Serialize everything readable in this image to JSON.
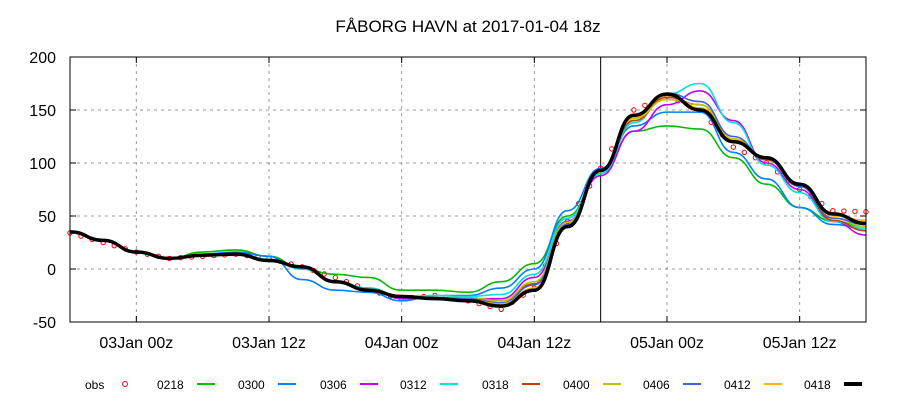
{
  "chart_data": {
    "type": "line",
    "title": "FÅBORG HAVN at 2017-01-04 18z",
    "xlabel": "",
    "ylabel": "",
    "x_unit": "hours since 02Jan 18z",
    "xlim": [
      0,
      72
    ],
    "ylim": [
      -50,
      200
    ],
    "yticks": [
      -50,
      0,
      50,
      100,
      150,
      200
    ],
    "xticks": [
      {
        "h": 6,
        "label": "03Jan 00z"
      },
      {
        "h": 18,
        "label": "03Jan 12z"
      },
      {
        "h": 30,
        "label": "04Jan 00z"
      },
      {
        "h": 42,
        "label": "04Jan 12z"
      },
      {
        "h": 54,
        "label": "05Jan 00z"
      },
      {
        "h": 66,
        "label": "05Jan 12z"
      }
    ],
    "analysis_time_h": 48,
    "grid": true,
    "legend_placement": "bottom",
    "x": [
      0,
      3,
      6,
      9,
      12,
      15,
      18,
      21,
      24,
      27,
      30,
      33,
      36,
      39,
      42,
      45,
      48,
      51,
      54,
      57,
      60,
      63,
      66,
      69,
      72
    ],
    "series": [
      {
        "name": "obs",
        "color": "#ff0000",
        "style": "points",
        "values": [
          34,
          25,
          16,
          10,
          12,
          14,
          10,
          2,
          -8,
          -20,
          -28,
          -25,
          -30,
          -38,
          -18,
          45,
          95,
          150,
          163,
          150,
          115,
          100,
          75,
          55,
          54
        ]
      },
      {
        "name": "0218",
        "color": "#00bb00",
        "style": "line",
        "values": [
          35,
          27,
          16,
          10,
          16,
          18,
          12,
          0,
          -5,
          -8,
          -20,
          -20,
          -22,
          -12,
          5,
          50,
          90,
          130,
          135,
          132,
          105,
          80,
          58,
          45,
          40
        ]
      },
      {
        "name": "0300",
        "color": "#0080ff",
        "style": "line",
        "values": [
          35,
          27,
          16,
          10,
          14,
          16,
          12,
          -10,
          -20,
          -22,
          -30,
          -25,
          -25,
          -18,
          0,
          55,
          95,
          135,
          148,
          148,
          110,
          85,
          58,
          42,
          38
        ]
      },
      {
        "name": "0306",
        "color": "#c000ff",
        "style": "line",
        "values": [
          35,
          27,
          16,
          10,
          13,
          15,
          9,
          0,
          -12,
          -18,
          -28,
          -27,
          -28,
          -28,
          -8,
          45,
          88,
          130,
          155,
          168,
          140,
          100,
          75,
          45,
          32
        ]
      },
      {
        "name": "0312",
        "color": "#00e0e0",
        "style": "line",
        "values": [
          35,
          27,
          16,
          10,
          13,
          15,
          9,
          0,
          -12,
          -18,
          -26,
          -25,
          -26,
          -24,
          -5,
          48,
          90,
          138,
          165,
          175,
          138,
          98,
          72,
          45,
          38
        ]
      },
      {
        "name": "0318",
        "color": "#c04000",
        "style": "line",
        "values": [
          35,
          27,
          16,
          10,
          13,
          14,
          8,
          2,
          -12,
          -19,
          -26,
          -27,
          -28,
          -30,
          -14,
          42,
          92,
          140,
          162,
          155,
          122,
          103,
          78,
          46,
          36
        ]
      },
      {
        "name": "0400",
        "color": "#c0c000",
        "style": "line",
        "values": [
          35,
          27,
          16,
          10,
          13,
          14,
          8,
          2,
          -12,
          -19,
          -25,
          -27,
          -27,
          -30,
          -12,
          44,
          92,
          142,
          160,
          155,
          123,
          104,
          79,
          48,
          40
        ]
      },
      {
        "name": "0406",
        "color": "#4060e0",
        "style": "line",
        "values": [
          35,
          27,
          16,
          10,
          13,
          14,
          8,
          2,
          -12,
          -20,
          -26,
          -27,
          -28,
          -32,
          -15,
          42,
          93,
          145,
          166,
          158,
          125,
          104,
          78,
          48,
          42
        ]
      },
      {
        "name": "0412",
        "color": "#ffb000",
        "style": "line",
        "values": [
          35,
          27,
          16,
          10,
          13,
          14,
          8,
          2,
          -12,
          -20,
          -26,
          -28,
          -29,
          -33,
          -18,
          40,
          93,
          143,
          164,
          152,
          122,
          105,
          80,
          50,
          46
        ]
      },
      {
        "name": "0418",
        "color": "#000000",
        "style": "thick",
        "values": [
          35,
          27,
          16,
          10,
          13,
          14,
          8,
          2,
          -12,
          -20,
          -26,
          -28,
          -30,
          -35,
          -20,
          40,
          93,
          145,
          165,
          150,
          120,
          105,
          80,
          52,
          43
        ]
      }
    ]
  }
}
